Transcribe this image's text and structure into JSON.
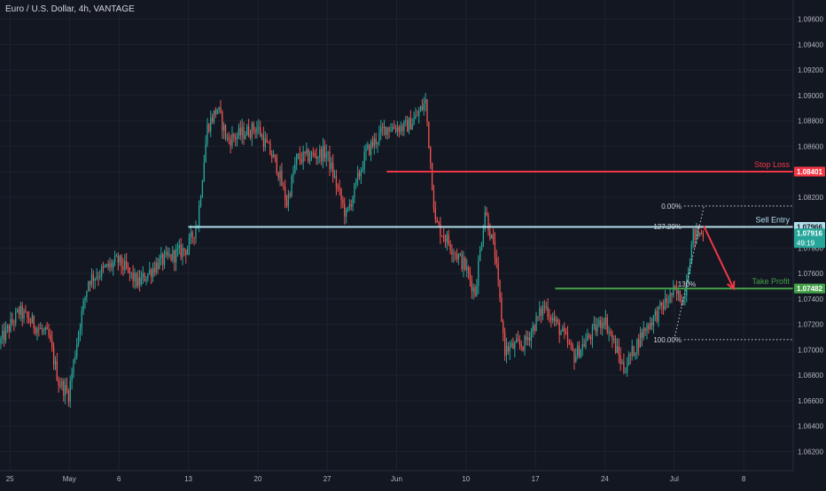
{
  "symbol_title": "Euro / U.S. Dollar, 4h, VANTAGE",
  "colors": {
    "background": "#131722",
    "grid": "#1e222d",
    "axis_text": "#b2b5be",
    "candle_up": "#26a69a",
    "candle_down": "#ef5350",
    "stop_loss": "#f23645",
    "sell_entry": "#b2dfeb",
    "take_profit": "#43a047",
    "current_price": "#26a69a",
    "fib": "#d1d4dc"
  },
  "chart_data": {
    "type": "candlestick",
    "y_axis": {
      "ticks": [
        1.062,
        1.064,
        1.066,
        1.068,
        1.07,
        1.072,
        1.074,
        1.076,
        1.078,
        1.082,
        1.084,
        1.086,
        1.088,
        1.09,
        1.092,
        1.094,
        1.096
      ],
      "tick_labels": [
        "1.06200",
        "1.06400",
        "1.06600",
        "1.06800",
        "1.07000",
        "1.07200",
        "1.07400",
        "1.07600",
        "1.07800",
        "1.08200",
        "1.08400",
        "1.08600",
        "1.08800",
        "1.09000",
        "1.09200",
        "1.09400",
        "1.09600"
      ],
      "ylim": [
        1.0605,
        1.0975
      ]
    },
    "x_axis": {
      "tick_labels": [
        "25",
        "May",
        "6",
        "13",
        "20",
        "27",
        "Jun",
        "10",
        "17",
        "24",
        "Jul",
        "8"
      ],
      "tick_dates": [
        "2024-04-25",
        "2024-05-01",
        "2024-05-06",
        "2024-05-13",
        "2024-05-20",
        "2024-05-27",
        "2024-06-03",
        "2024-06-10",
        "2024-06-17",
        "2024-06-24",
        "2024-07-01",
        "2024-07-08"
      ],
      "xlim": [
        "2024-04-24",
        "2024-07-13"
      ]
    },
    "price_path": [
      [
        "2024-04-24",
        1.0705
      ],
      [
        "2024-04-26",
        1.073
      ],
      [
        "2024-04-29",
        1.071
      ],
      [
        "2024-04-30",
        1.0675
      ],
      [
        "2024-05-01",
        1.0665
      ],
      [
        "2024-05-02",
        1.0715
      ],
      [
        "2024-05-03",
        1.0755
      ],
      [
        "2024-05-06",
        1.077
      ],
      [
        "2024-05-08",
        1.0752
      ],
      [
        "2024-05-10",
        1.0768
      ],
      [
        "2024-05-13",
        1.078
      ],
      [
        "2024-05-14",
        1.08
      ],
      [
        "2024-05-15",
        1.0875
      ],
      [
        "2024-05-16",
        1.089
      ],
      [
        "2024-05-17",
        1.0865
      ],
      [
        "2024-05-20",
        1.0875
      ],
      [
        "2024-05-22",
        1.0845
      ],
      [
        "2024-05-23",
        1.0815
      ],
      [
        "2024-05-24",
        1.085
      ],
      [
        "2024-05-27",
        1.0855
      ],
      [
        "2024-05-29",
        1.0805
      ],
      [
        "2024-05-30",
        1.083
      ],
      [
        "2024-05-31",
        1.0855
      ],
      [
        "2024-06-02",
        1.0875
      ],
      [
        "2024-06-04",
        1.0875
      ],
      [
        "2024-06-05",
        1.0882
      ],
      [
        "2024-06-06",
        1.0895
      ],
      [
        "2024-06-07",
        1.08
      ],
      [
        "2024-06-10",
        1.0765
      ],
      [
        "2024-06-11",
        1.0745
      ],
      [
        "2024-06-12",
        1.081
      ],
      [
        "2024-06-13",
        1.0775
      ],
      [
        "2024-06-14",
        1.07
      ],
      [
        "2024-06-16",
        1.0705
      ],
      [
        "2024-06-18",
        1.0735
      ],
      [
        "2024-06-20",
        1.071
      ],
      [
        "2024-06-21",
        1.0695
      ],
      [
        "2024-06-24",
        1.0725
      ],
      [
        "2024-06-26",
        1.0685
      ],
      [
        "2024-06-28",
        1.0715
      ],
      [
        "2024-07-01",
        1.0745
      ],
      [
        "2024-07-02",
        1.074
      ],
      [
        "2024-07-03",
        1.079
      ],
      [
        "2024-07-04",
        1.0792
      ]
    ],
    "levels": [
      {
        "name": "Stop Loss",
        "value": 1.08401,
        "label": "1.08401",
        "start_date": "2024-06-02"
      },
      {
        "name": "Sell Entry",
        "value": 1.07966,
        "label": "1.07966",
        "start_date": "2024-05-13"
      },
      {
        "name": "Take Profit",
        "value": 1.07482,
        "label": "1.07482",
        "start_date": "2024-06-19"
      }
    ],
    "current_price": {
      "value": 1.07916,
      "label": "1.07916",
      "countdown": "49:19"
    },
    "fib_levels": [
      {
        "label": "0.00%",
        "value": 1.0813
      },
      {
        "label": "127.20%",
        "value": 1.0797
      },
      {
        "label": "100.00%",
        "value": 1.0708
      }
    ],
    "fib_partial_label": "130%",
    "projection": {
      "from_date": "2024-07-04",
      "from_price": 1.0797,
      "to_date": "2024-07-07",
      "to_price": 1.0748
    }
  }
}
